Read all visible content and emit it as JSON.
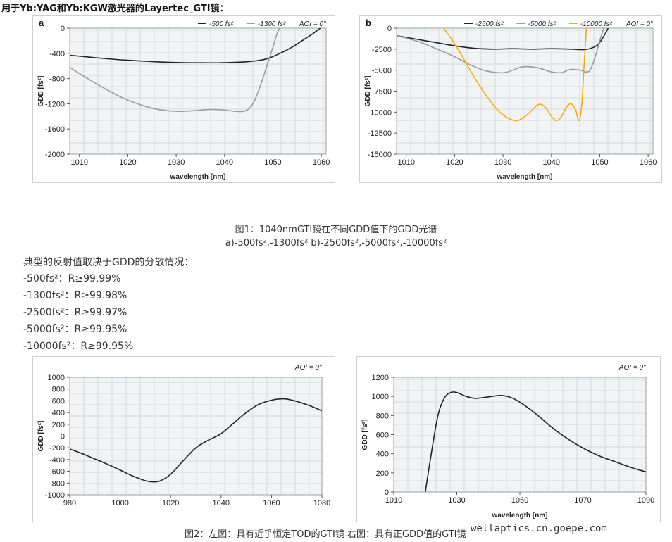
{
  "page": {
    "heading": "用于Yb:YAG和Yb:KGW激光器的Layertec_GTI镜：",
    "fig1_caption_line1": "图1：1040nmGTI镜在不同GDD值下的GDD光谱",
    "fig1_caption_line2": "a)-500fs²,-1300fs²    b)-2500fs²,-5000fs²,-10000fs²",
    "intro": "典型的反射值取决于GDD的分散情况：",
    "reflectivity": [
      "-500fs²：R≥99.99%",
      "-1300fs²：R≥99.98%",
      "-2500fs²：R≥99.97%",
      "-5000fs²：R≥99.95%",
      "-10000fs²：R≥99.95%"
    ],
    "fig2_caption": "图2：左图：具有近乎恒定TOD的GTI镜  右图：具有正GDD值的GTI镜",
    "watermark": "wellaptics.cn.goepe.com"
  },
  "chart_data": [
    {
      "type": "line",
      "panel_label": "a",
      "aoi": "AOI = 0°",
      "xlabel": "wavelength [nm]",
      "ylabel": "GDD [fs²]",
      "xlim": [
        1008,
        1061
      ],
      "ylim": [
        -2000,
        0
      ],
      "xticks": [
        1010,
        1020,
        1030,
        1040,
        1050,
        1060
      ],
      "yticks": [
        0,
        -400,
        -800,
        -1200,
        -1600,
        -2000
      ],
      "legend": "top-right",
      "series": [
        {
          "name": "-500 fs²",
          "color": "#222222",
          "x": [
            1008,
            1015,
            1020,
            1025,
            1030,
            1035,
            1040,
            1045,
            1048,
            1050,
            1052,
            1054,
            1056,
            1058,
            1060,
            1061
          ],
          "y": [
            -430,
            -480,
            -510,
            -530,
            -545,
            -550,
            -548,
            -530,
            -500,
            -450,
            -380,
            -300,
            -200,
            -100,
            10,
            60
          ]
        },
        {
          "name": "-1300 fs²",
          "color": "#9a9a9a",
          "x": [
            1008,
            1010,
            1013,
            1016,
            1019,
            1022,
            1025,
            1028,
            1031,
            1034,
            1037,
            1040,
            1042,
            1044,
            1045,
            1046,
            1047,
            1048,
            1049,
            1050,
            1051,
            1052
          ],
          "y": [
            -620,
            -720,
            -860,
            -990,
            -1110,
            -1200,
            -1270,
            -1310,
            -1320,
            -1310,
            -1290,
            -1300,
            -1320,
            -1320,
            -1280,
            -1180,
            -1000,
            -780,
            -540,
            -300,
            -60,
            80
          ]
        }
      ]
    },
    {
      "type": "line",
      "panel_label": "b",
      "aoi": "AOI = 0°",
      "xlabel": "wavelength [nm]",
      "ylabel": "GDD [fs²]",
      "xlim": [
        1008,
        1061
      ],
      "ylim": [
        -15000,
        0
      ],
      "xticks": [
        1010,
        1020,
        1030,
        1040,
        1050,
        1060
      ],
      "yticks": [
        0,
        -2500,
        -5000,
        -7500,
        -10000,
        -12500,
        -15000
      ],
      "legend": "top-right",
      "series": [
        {
          "name": "-2500 fs²",
          "color": "#222222",
          "x": [
            1008,
            1012,
            1016,
            1020,
            1024,
            1028,
            1032,
            1036,
            1040,
            1044,
            1047,
            1049,
            1050,
            1051,
            1052
          ],
          "y": [
            -900,
            -1300,
            -1700,
            -2100,
            -2400,
            -2500,
            -2450,
            -2500,
            -2450,
            -2500,
            -2550,
            -2200,
            -1700,
            -800,
            300
          ]
        },
        {
          "name": "-5000 fs²",
          "color": "#9a9a9a",
          "x": [
            1008,
            1012,
            1016,
            1020,
            1023,
            1026,
            1029,
            1031,
            1034,
            1037,
            1040,
            1042,
            1044,
            1046,
            1047,
            1048,
            1049,
            1050,
            1051
          ],
          "y": [
            -900,
            -1500,
            -2400,
            -3400,
            -4300,
            -5000,
            -5300,
            -5200,
            -4600,
            -4700,
            -5200,
            -5300,
            -4900,
            -5000,
            -5200,
            -5000,
            -3500,
            -1500,
            300
          ]
        },
        {
          "name": "-10000 fs²",
          "color": "#f2a81d",
          "x": [
            1017,
            1019,
            1021,
            1023,
            1025,
            1027,
            1029,
            1031,
            1033,
            1035,
            1037,
            1038,
            1039,
            1040,
            1041,
            1042,
            1043,
            1044,
            1045,
            1045.7,
            1046.3,
            1046.8,
            1047.3
          ],
          "y": [
            500,
            -1000,
            -2800,
            -4800,
            -6700,
            -8400,
            -9800,
            -10700,
            -11000,
            -10300,
            -9200,
            -9100,
            -9600,
            -10500,
            -11000,
            -10600,
            -9500,
            -9000,
            -9700,
            -11000,
            -9000,
            -4000,
            500
          ]
        }
      ]
    },
    {
      "type": "line",
      "aoi": "AOI = 0°",
      "xlabel": "",
      "ylabel": "GDD [fs²]",
      "xlim": [
        980,
        1080
      ],
      "ylim": [
        -1000,
        1000
      ],
      "xticks": [
        980,
        1000,
        1020,
        1040,
        1060,
        1080
      ],
      "yticks": [
        1000,
        800,
        600,
        400,
        200,
        0,
        -200,
        -400,
        -600,
        -800,
        -1000
      ],
      "series": [
        {
          "color": "#222222",
          "x": [
            980,
            985,
            990,
            995,
            1000,
            1005,
            1010,
            1013,
            1016,
            1020,
            1025,
            1030,
            1035,
            1040,
            1045,
            1050,
            1055,
            1060,
            1063,
            1066,
            1070,
            1075,
            1080
          ],
          "y": [
            -220,
            -300,
            -390,
            -480,
            -580,
            -680,
            -760,
            -780,
            -760,
            -650,
            -420,
            -200,
            -70,
            40,
            220,
            400,
            540,
            610,
            630,
            630,
            590,
            520,
            430
          ]
        }
      ]
    },
    {
      "type": "line",
      "aoi": "AOI = 0°",
      "xlabel": "wavelength [nm]",
      "ylabel": "GDD [fs²]",
      "xlim": [
        1010,
        1090
      ],
      "ylim": [
        0,
        1200
      ],
      "xticks": [
        1010,
        1030,
        1050,
        1070,
        1090
      ],
      "yticks": [
        1200,
        1000,
        800,
        600,
        400,
        200,
        0
      ],
      "series": [
        {
          "color": "#222222",
          "x": [
            1020,
            1022,
            1024,
            1026,
            1028,
            1030,
            1033,
            1036,
            1040,
            1044,
            1047,
            1050,
            1055,
            1060,
            1065,
            1070,
            1075,
            1080,
            1085,
            1090
          ],
          "y": [
            0,
            420,
            800,
            980,
            1040,
            1040,
            1000,
            980,
            995,
            1010,
            990,
            940,
            820,
            680,
            560,
            460,
            380,
            320,
            260,
            210
          ]
        }
      ]
    }
  ]
}
